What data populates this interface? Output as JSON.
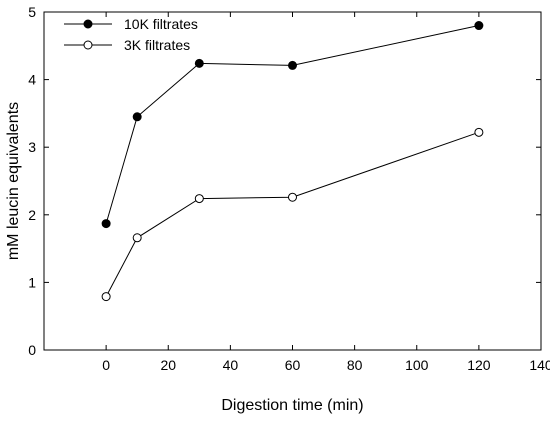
{
  "chart_data": {
    "type": "line",
    "xlabel": "Digestion time (min)",
    "ylabel": "mM leucin equivalents",
    "xlim": [
      -20,
      140
    ],
    "ylim": [
      0,
      5
    ],
    "x_ticks": [
      0,
      20,
      40,
      60,
      80,
      100,
      120,
      140
    ],
    "y_ticks": [
      0,
      1,
      2,
      3,
      4,
      5
    ],
    "grid": false,
    "legend_position": "top-left",
    "series": [
      {
        "name": "10K filtrates",
        "marker": "filled-circle",
        "color": "#000000",
        "x": [
          0,
          10,
          30,
          60,
          120
        ],
        "y": [
          1.87,
          3.45,
          4.24,
          4.21,
          4.8
        ]
      },
      {
        "name": "3K filtrates",
        "marker": "open-circle",
        "color": "#000000",
        "x": [
          0,
          10,
          30,
          60,
          120
        ],
        "y": [
          0.79,
          1.66,
          2.24,
          2.26,
          3.22
        ]
      }
    ]
  }
}
